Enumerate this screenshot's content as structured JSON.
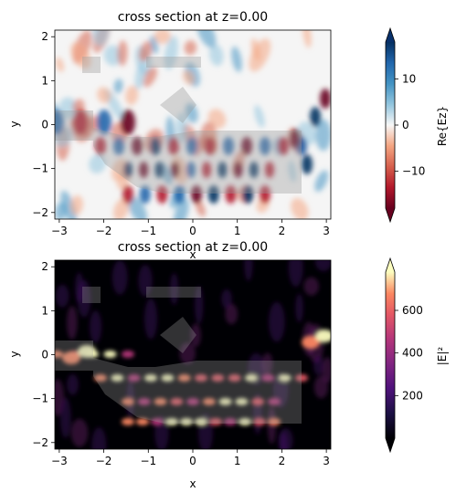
{
  "chart_data": [
    {
      "type": "heatmap",
      "title": "cross section at z=0.00",
      "xlabel": "x",
      "ylabel": "y",
      "xlim": [
        -3.1,
        3.1
      ],
      "ylim": [
        -2.15,
        2.15
      ],
      "xticks": [
        -3,
        -2,
        -1,
        0,
        1,
        2,
        3
      ],
      "yticks": [
        -2,
        -1,
        0,
        1,
        2
      ],
      "colorbar": {
        "label": "Re{Ez}",
        "range": [
          -18,
          18
        ],
        "ticks": [
          10,
          0,
          -10
        ],
        "colormap": "RdBu",
        "extend": "both",
        "cap_top_color": "#08306b",
        "cap_bottom_color": "#67001f"
      }
    },
    {
      "type": "heatmap",
      "title": "cross section at z=0.00",
      "xlabel": "x",
      "ylabel": "y",
      "xlim": [
        -3.1,
        3.1
      ],
      "ylim": [
        -2.15,
        2.15
      ],
      "xticks": [
        -3,
        -2,
        -1,
        0,
        1,
        2,
        3
      ],
      "yticks": [
        -2,
        -1,
        0,
        1,
        2
      ],
      "colorbar": {
        "label": "|E|²",
        "range": [
          0,
          780
        ],
        "ticks": [
          600,
          400,
          200
        ],
        "colormap": "magma",
        "extend": "both",
        "cap_top_color": "#fcfdbf",
        "cap_bottom_color": "#000004"
      }
    }
  ]
}
